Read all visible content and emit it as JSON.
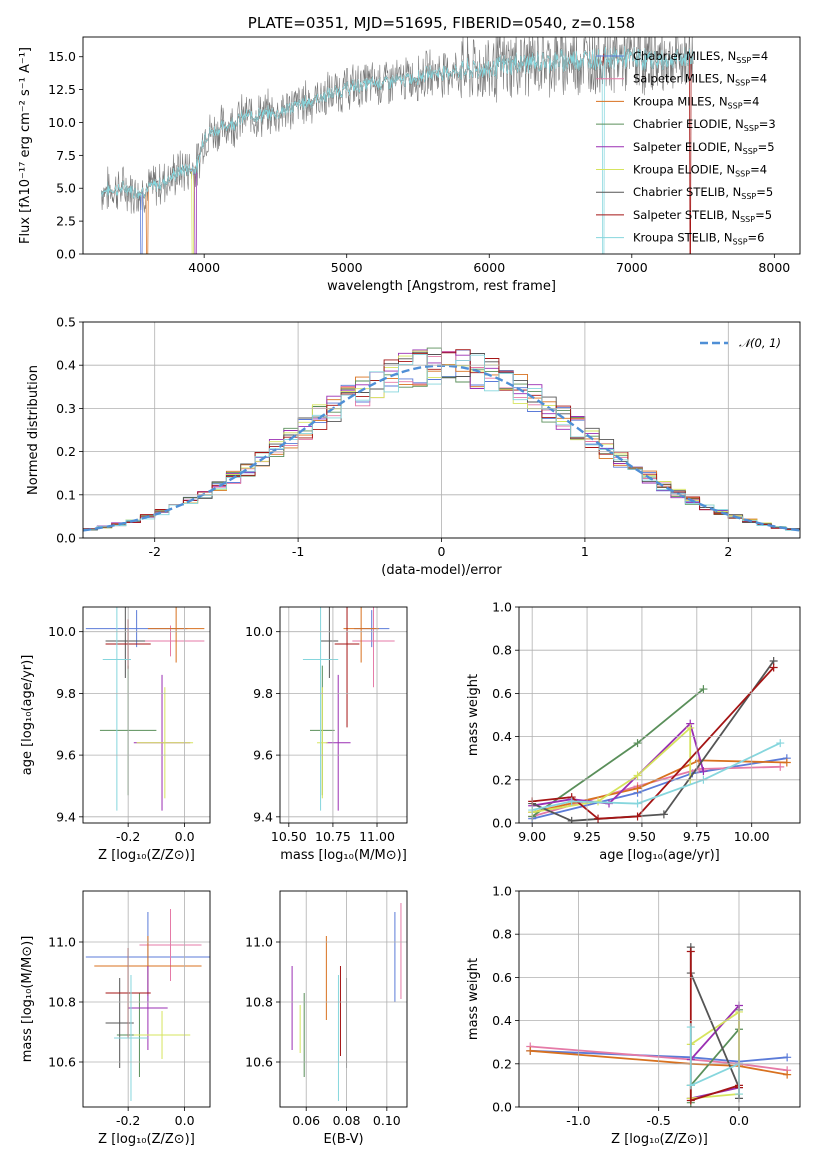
{
  "colors": {
    "series": [
      "#5b7bd8",
      "#e57aa7",
      "#d8711f",
      "#5a8f5a",
      "#9a2fb3",
      "#d6e45e",
      "#555555",
      "#a51515",
      "#86d6dd"
    ],
    "gaussian": "#4f8fd6",
    "grid": "#b0b0b0"
  },
  "chart_data": [
    {
      "id": "spectrum",
      "type": "line",
      "title": "PLATE=0351, MJD=51695, FIBERID=0540, z=0.158",
      "xlabel": "wavelength [Angstrom, rest frame]",
      "ylabel": "Flux [fλ10⁻¹⁷ erg cm⁻² s⁻¹ A⁻¹]",
      "xlim": [
        3150,
        8180
      ],
      "ylim": [
        0,
        16.5
      ],
      "xticks": [
        4000,
        5000,
        6000,
        7000,
        8000
      ],
      "yticks": [
        0.0,
        2.5,
        5.0,
        7.5,
        10.0,
        12.5,
        15.0
      ],
      "grid": false,
      "legend_position": "top-right",
      "legend": [
        "Chabrier MILES, N_SSP=4",
        "Salpeter MILES, N_SSP=4",
        "Kroupa MILES, N_SSP=4",
        "Chabrier ELODIE, N_SSP=3",
        "Salpeter ELODIE, N_SSP=5",
        "Kroupa ELODIE, N_SSP=4",
        "Chabrier STELIB, N_SSP=5",
        "Salpeter STELIB, N_SSP=5",
        "Kroupa STELIB, N_SSP=6"
      ],
      "continuum": {
        "x": [
          3280,
          3450,
          3550,
          3700,
          3850,
          3950,
          4000,
          4100,
          4300,
          4500,
          4700,
          4850,
          5000,
          5200,
          5400,
          5600,
          5800,
          6000,
          6200,
          6400,
          6600,
          6800,
          7000,
          7200,
          7400
        ],
        "y": [
          4.8,
          5.0,
          4.7,
          5.4,
          6.4,
          6.6,
          9.0,
          9.5,
          10.5,
          10.7,
          11.5,
          12.0,
          12.6,
          13.0,
          13.2,
          13.8,
          13.9,
          14.1,
          14.5,
          14.6,
          14.8,
          14.9,
          14.9,
          14.7,
          14.9
        ]
      }
    },
    {
      "id": "residuals",
      "type": "step",
      "xlabel": "(data-model)/error",
      "ylabel": "Normed distribution",
      "xlim": [
        -2.5,
        2.5
      ],
      "ylim": [
        0,
        0.5
      ],
      "xticks": [
        -2,
        -1,
        0,
        1,
        2
      ],
      "yticks": [
        0.0,
        0.1,
        0.2,
        0.3,
        0.4,
        0.5
      ],
      "grid": true,
      "legend_position": "top-right",
      "legend": [
        "𝒩(0, 1)"
      ],
      "gaussian": {
        "mean": 0,
        "sigma": 1
      }
    },
    {
      "id": "age-vs-Z",
      "type": "errorbar",
      "xlabel": "Z [log₁₀(Z/Z⊙)]",
      "ylabel": "age  [log₁₀(age/yr)]",
      "xlim": [
        -0.36,
        0.09
      ],
      "ylim": [
        9.38,
        10.08
      ],
      "xticks": [
        -0.2,
        0.0
      ],
      "yticks": [
        9.4,
        9.6,
        9.8,
        10.0
      ],
      "grid": true,
      "points": [
        {
          "x": -0.17,
          "y": 10.01,
          "xerr": 0.18,
          "yerr": 0.06
        },
        {
          "x": -0.05,
          "y": 9.97,
          "xerr": 0.12,
          "yerr": 0.05
        },
        {
          "x": -0.03,
          "y": 10.01,
          "xerr": 0.1,
          "yerr": 0.11
        },
        {
          "x": -0.2,
          "y": 9.68,
          "xerr": 0.1,
          "yerr": 0.21
        },
        {
          "x": -0.08,
          "y": 9.64,
          "xerr": 0.1,
          "yerr": 0.22
        },
        {
          "x": -0.07,
          "y": 9.64,
          "xerr": 0.1,
          "yerr": 0.18
        },
        {
          "x": -0.21,
          "y": 9.97,
          "xerr": 0.07,
          "yerr": 0.12
        },
        {
          "x": -0.2,
          "y": 9.96,
          "xerr": 0.08,
          "yerr": 0.08
        },
        {
          "x": -0.24,
          "y": 9.91,
          "xerr": 0.05,
          "yerr": 0.49
        }
      ]
    },
    {
      "id": "age-vs-mass",
      "type": "errorbar",
      "xlabel": "mass [log₁₀(M/M⊙)]",
      "ylabel": "",
      "xlim": [
        10.45,
        11.17
      ],
      "ylim": [
        9.38,
        10.08
      ],
      "xticks": [
        10.5,
        10.75,
        11.0
      ],
      "yticks": [
        9.4,
        9.6,
        9.8,
        10.0
      ],
      "grid": true,
      "points": [
        {
          "x": 10.97,
          "y": 10.01,
          "xerr": 0.1,
          "yerr": 0.06
        },
        {
          "x": 10.98,
          "y": 9.97,
          "xerr": 0.12,
          "yerr": 0.15
        },
        {
          "x": 10.91,
          "y": 10.01,
          "xerr": 0.1,
          "yerr": 0.11
        },
        {
          "x": 10.69,
          "y": 9.68,
          "xerr": 0.07,
          "yerr": 0.21
        },
        {
          "x": 10.78,
          "y": 9.64,
          "xerr": 0.07,
          "yerr": 0.22
        },
        {
          "x": 10.69,
          "y": 9.64,
          "xerr": 0.03,
          "yerr": 0.18
        },
        {
          "x": 10.73,
          "y": 9.97,
          "xerr": 0.05,
          "yerr": 0.12
        },
        {
          "x": 10.83,
          "y": 9.96,
          "xerr": 0.07,
          "yerr": 0.27
        },
        {
          "x": 10.68,
          "y": 9.91,
          "xerr": 0.1,
          "yerr": 0.49
        }
      ]
    },
    {
      "id": "weight-vs-age",
      "type": "line",
      "xlabel": "age  [log₁₀(age/yr)]",
      "ylabel": "mass weight",
      "xlim": [
        8.94,
        10.22
      ],
      "ylim": [
        0,
        1.0
      ],
      "xticks": [
        9.0,
        9.25,
        9.5,
        9.75,
        10.0
      ],
      "yticks": [
        0.0,
        0.2,
        0.4,
        0.6,
        0.8,
        1.0
      ],
      "grid": true,
      "series": [
        {
          "x": [
            9.0,
            9.48,
            9.73,
            10.16
          ],
          "y": [
            0.02,
            0.14,
            0.23,
            0.3
          ]
        },
        {
          "x": [
            9.0,
            9.48,
            9.76,
            10.13
          ],
          "y": [
            0.03,
            0.17,
            0.25,
            0.26
          ]
        },
        {
          "x": [
            9.0,
            9.48,
            9.76,
            10.16
          ],
          "y": [
            0.05,
            0.16,
            0.29,
            0.28
          ]
        },
        {
          "x": [
            9.0,
            9.48,
            9.78
          ],
          "y": [
            0.03,
            0.37,
            0.62
          ]
        },
        {
          "x": [
            9.0,
            9.18,
            9.35,
            9.72,
            9.78
          ],
          "y": [
            0.08,
            0.11,
            0.09,
            0.46,
            0.24
          ]
        },
        {
          "x": [
            9.0,
            9.3,
            9.48,
            9.72,
            9.72
          ],
          "y": [
            0.05,
            0.1,
            0.22,
            0.44,
            0.2
          ]
        },
        {
          "x": [
            9.0,
            9.18,
            9.6,
            10.1
          ],
          "y": [
            0.09,
            0.01,
            0.04,
            0.75
          ]
        },
        {
          "x": [
            9.0,
            9.18,
            9.3,
            9.48,
            10.1
          ],
          "y": [
            0.1,
            0.12,
            0.02,
            0.03,
            0.72
          ]
        },
        {
          "x": [
            9.0,
            9.18,
            9.48,
            9.78,
            10.13
          ],
          "y": [
            0.06,
            0.1,
            0.09,
            0.2,
            0.37
          ]
        }
      ]
    },
    {
      "id": "mass-vs-Z",
      "type": "errorbar",
      "xlabel": "Z [log₁₀(Z/Z⊙)]",
      "ylabel": "mass [log₁₀(M/M⊙)]",
      "xlim": [
        -0.36,
        0.09
      ],
      "ylim": [
        10.45,
        11.17
      ],
      "xticks": [
        -0.2,
        0.0
      ],
      "yticks": [
        10.6,
        10.8,
        11.0
      ],
      "grid": true,
      "points": [
        {
          "x": -0.13,
          "y": 10.95,
          "xerr": 0.22,
          "yerr": 0.15
        },
        {
          "x": -0.05,
          "y": 10.99,
          "xerr": 0.11,
          "yerr": 0.12
        },
        {
          "x": -0.13,
          "y": 10.92,
          "xerr": 0.19,
          "yerr": 0.1
        },
        {
          "x": -0.16,
          "y": 10.69,
          "xerr": 0.08,
          "yerr": 0.14
        },
        {
          "x": -0.13,
          "y": 10.78,
          "xerr": 0.07,
          "yerr": 0.14
        },
        {
          "x": -0.08,
          "y": 10.69,
          "xerr": 0.1,
          "yerr": 0.08
        },
        {
          "x": -0.23,
          "y": 10.73,
          "xerr": 0.05,
          "yerr": 0.15
        },
        {
          "x": -0.2,
          "y": 10.83,
          "xerr": 0.08,
          "yerr": 0.15
        },
        {
          "x": -0.19,
          "y": 10.68,
          "xerr": 0.06,
          "yerr": 0.21
        }
      ]
    },
    {
      "id": "mass-vs-ebv",
      "type": "errorbar",
      "xlabel": "E(B-V)",
      "ylabel": "",
      "xlim": [
        0.047,
        0.11
      ],
      "ylim": [
        10.45,
        11.17
      ],
      "xticks": [
        0.06,
        0.08,
        0.1
      ],
      "yticks": [
        10.6,
        10.8,
        11.0
      ],
      "grid": true,
      "points": [
        {
          "x": 0.104,
          "y": 10.95,
          "xerr": 0,
          "yerr": 0.15
        },
        {
          "x": 0.107,
          "y": 10.97,
          "xerr": 0,
          "yerr": 0.16
        },
        {
          "x": 0.07,
          "y": 10.88,
          "xerr": 0,
          "yerr": 0.14
        },
        {
          "x": 0.059,
          "y": 10.69,
          "xerr": 0,
          "yerr": 0.14
        },
        {
          "x": 0.053,
          "y": 10.78,
          "xerr": 0,
          "yerr": 0.14
        },
        {
          "x": 0.057,
          "y": 10.71,
          "xerr": 0,
          "yerr": 0.08
        },
        {
          "x": 0.08,
          "y": 10.73,
          "xerr": 0,
          "yerr": 0.15
        },
        {
          "x": 0.077,
          "y": 10.77,
          "xerr": 0,
          "yerr": 0.15
        },
        {
          "x": 0.076,
          "y": 10.68,
          "xerr": 0,
          "yerr": 0.21
        }
      ]
    },
    {
      "id": "weight-vs-Z",
      "type": "line",
      "xlabel": "Z [log₁₀(Z/Z⊙)]",
      "ylabel": "mass weight",
      "xlim": [
        -1.37,
        0.38
      ],
      "ylim": [
        0,
        1.0
      ],
      "xticks": [
        -1.0,
        -0.5,
        0.0
      ],
      "yticks": [
        0.0,
        0.2,
        0.4,
        0.6,
        0.8,
        1.0
      ],
      "grid": true,
      "series": [
        {
          "x": [
            -1.3,
            -0.3,
            0.0,
            0.3
          ],
          "y": [
            0.26,
            0.23,
            0.21,
            0.23
          ]
        },
        {
          "x": [
            -1.3,
            -0.3,
            0.0,
            0.3
          ],
          "y": [
            0.28,
            0.22,
            0.2,
            0.17
          ]
        },
        {
          "x": [
            -1.3,
            -0.3,
            0.0,
            0.3
          ],
          "y": [
            0.26,
            0.2,
            0.19,
            0.15
          ]
        },
        {
          "x": [
            -0.3,
            -0.3,
            0.0,
            0.0
          ],
          "y": [
            0.02,
            0.1,
            0.36,
            0.45
          ]
        },
        {
          "x": [
            -0.3,
            0.0,
            0.0,
            -0.3
          ],
          "y": [
            0.04,
            0.09,
            0.47,
            0.22
          ]
        },
        {
          "x": [
            -0.3,
            0.0,
            0.0,
            -0.3
          ],
          "y": [
            0.04,
            0.06,
            0.44,
            0.29
          ]
        },
        {
          "x": [
            -0.3,
            -0.3,
            0.0,
            0.0
          ],
          "y": [
            0.74,
            0.62,
            0.09,
            0.04
          ]
        },
        {
          "x": [
            -0.3,
            -0.3,
            0.0,
            0.0
          ],
          "y": [
            0.72,
            0.03,
            0.1,
            0.09
          ]
        },
        {
          "x": [
            -0.3,
            -0.3,
            0.0,
            0.0
          ],
          "y": [
            0.37,
            0.1,
            0.2,
            0.06
          ]
        }
      ]
    }
  ]
}
